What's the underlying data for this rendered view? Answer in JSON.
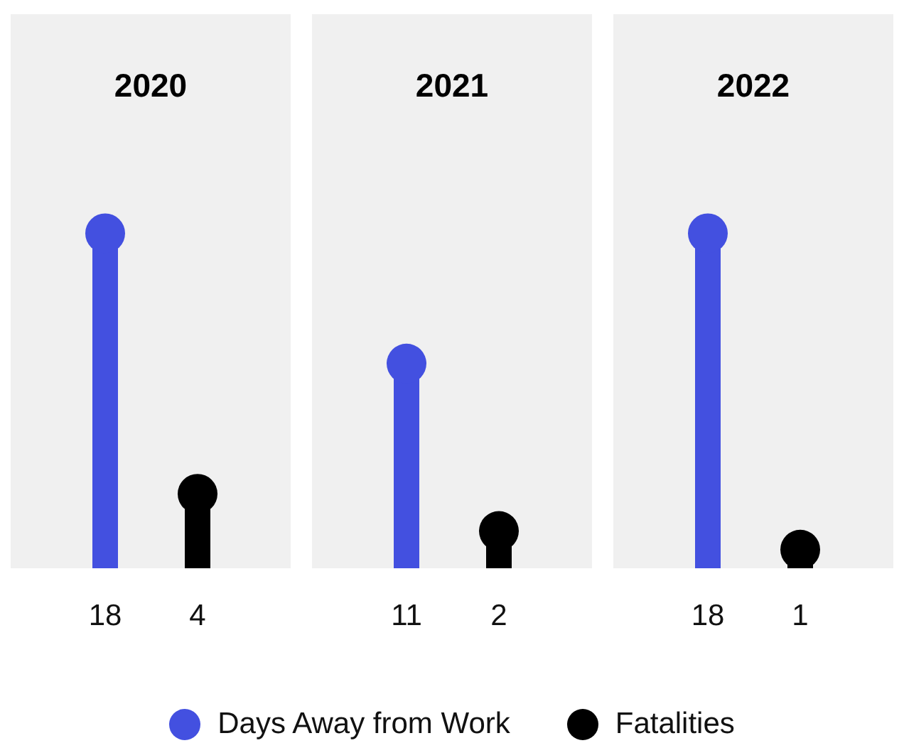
{
  "chart_data": {
    "type": "lollipop",
    "categories": [
      "2020",
      "2021",
      "2022"
    ],
    "series": [
      {
        "name": "Days Away from Work",
        "color": "#4350e0",
        "values": [
          18,
          11,
          18
        ]
      },
      {
        "name": "Fatalities",
        "color": "#000000",
        "values": [
          4,
          2,
          1
        ]
      }
    ],
    "data_labels": true,
    "legend": "bottom"
  }
}
